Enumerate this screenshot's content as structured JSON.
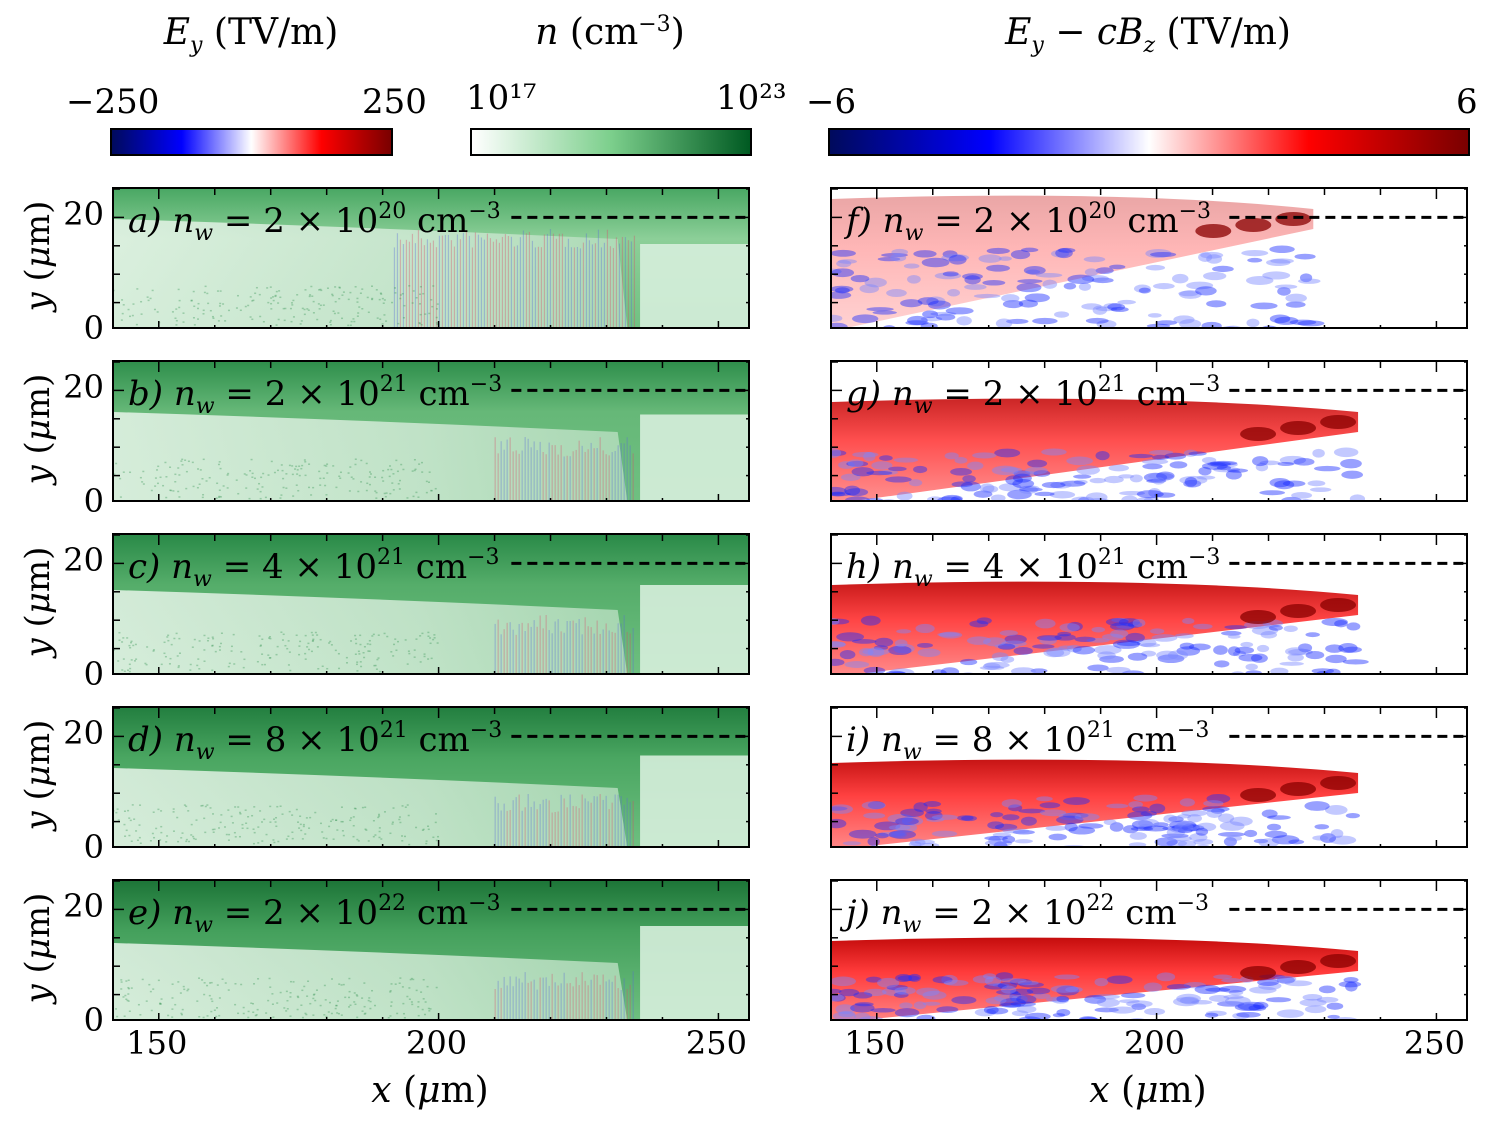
{
  "colorbars": {
    "ey": {
      "title": "E_y (TV/m)",
      "title_display": "Ey (TV/m)",
      "min_label": "−250",
      "max_label": "250",
      "colors": [
        "#000a5c",
        "#0000ff",
        "#ffffff",
        "#ff0000",
        "#7a0000"
      ]
    },
    "density": {
      "title": "n (cm⁻³)",
      "min_label": "10¹⁷",
      "max_label": "10²³",
      "colors": [
        "#ffffff",
        "#7ccf8c",
        "#005a22"
      ]
    },
    "ey_cbz": {
      "title": "E_y − cB_z (TV/m)",
      "title_display": "Ey − cBz (TV/m)",
      "min_label": "−6",
      "max_label": "6",
      "colors": [
        "#000a5c",
        "#0000ff",
        "#ffffff",
        "#ff0000",
        "#7a0000"
      ]
    }
  },
  "chart_data": {
    "type": "heatmap",
    "description_axes": {
      "xlabel": "x (μm)",
      "ylabel": "y (μm)",
      "xlim": [
        142,
        256
      ],
      "ylim": [
        0,
        25
      ],
      "xticks": [
        150,
        200,
        250
      ],
      "yticks": [
        0,
        20
      ],
      "dashed_line_y": 20
    },
    "left_panels": [
      {
        "label": "a)",
        "n_w_mantissa": "2",
        "n_w_exponent": "20",
        "unit": "cm",
        "unit_exp": "−3"
      },
      {
        "label": "b)",
        "n_w_mantissa": "2",
        "n_w_exponent": "21",
        "unit": "cm",
        "unit_exp": "−3"
      },
      {
        "label": "c)",
        "n_w_mantissa": "4",
        "n_w_exponent": "21",
        "unit": "cm",
        "unit_exp": "−3"
      },
      {
        "label": "d)",
        "n_w_mantissa": "8",
        "n_w_exponent": "21",
        "unit": "cm",
        "unit_exp": "−3"
      },
      {
        "label": "e)",
        "n_w_mantissa": "2",
        "n_w_exponent": "22",
        "unit": "cm",
        "unit_exp": "−3"
      }
    ],
    "right_panels": [
      {
        "label": "f)",
        "n_w_mantissa": "2",
        "n_w_exponent": "20",
        "unit": "cm",
        "unit_exp": "−3"
      },
      {
        "label": "g)",
        "n_w_mantissa": "2",
        "n_w_exponent": "21",
        "unit": "cm",
        "unit_exp": "−3"
      },
      {
        "label": "h)",
        "n_w_mantissa": "4",
        "n_w_exponent": "21",
        "unit": "cm",
        "unit_exp": "−3"
      },
      {
        "label": "i)",
        "n_w_mantissa": "8",
        "n_w_exponent": "21",
        "unit": "cm",
        "unit_exp": "−3"
      },
      {
        "label": "j)",
        "n_w_mantissa": "2",
        "n_w_exponent": "22",
        "unit": "cm",
        "unit_exp": "−3"
      }
    ]
  },
  "axes_text": {
    "xlabel": "x (μm)",
    "ylabel": "y (μm)",
    "xticks": [
      "150",
      "200",
      "250"
    ],
    "yticks": [
      "0",
      "20"
    ],
    "nw_symbol": "n",
    "nw_sub": "w",
    "times": "×",
    "equals": "=",
    "ten": "10"
  }
}
